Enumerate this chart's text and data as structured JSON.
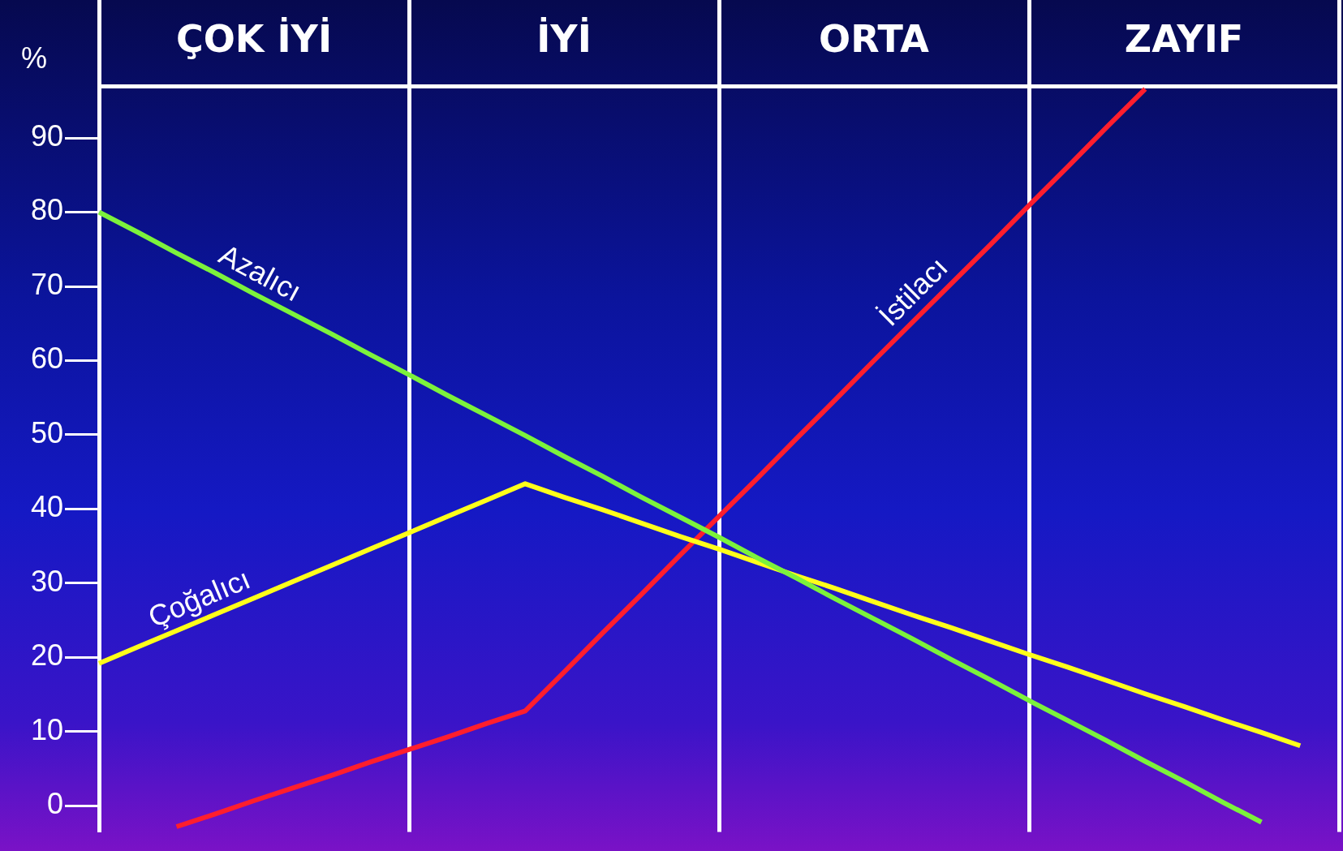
{
  "chart_data": {
    "type": "line",
    "ylabel": "%",
    "categories": [
      null,
      null,
      null,
      null,
      "ÇOK İYİ",
      null,
      null,
      null,
      null,
      null,
      null,
      null,
      "İYİ",
      null,
      null,
      null,
      null,
      null,
      null,
      null,
      "ORTA",
      null,
      null,
      null,
      null,
      null,
      null,
      null,
      "ZAYIF",
      null,
      null,
      null,
      null
    ],
    "ylim": [
      -3.5,
      97
    ],
    "yticks": [
      0,
      10,
      20,
      30,
      40,
      50,
      60,
      70,
      80,
      90
    ],
    "grid": "x",
    "legend": false,
    "marker": "none",
    "line_style": "solid",
    "series": [
      {
        "name": "Azalıcı",
        "color": "#7cf23c",
        "values": [
          80,
          77.3,
          74.5,
          71.8,
          69.0,
          66.3,
          63.6,
          60.8,
          58.1,
          55.3,
          52.6,
          49.9,
          47.1,
          44.4,
          41.6,
          38.9,
          36.2,
          33.4,
          30.7,
          27.9,
          25.2,
          22.5,
          19.7,
          17.0,
          14.2,
          11.5,
          8.8,
          6.0,
          3.3,
          0.5,
          -2.2,
          null,
          null
        ]
      },
      {
        "name": "Çoğalıcı",
        "color": "#ffff1a",
        "values": [
          19.2,
          21.4,
          23.6,
          25.8,
          28.0,
          30.2,
          32.4,
          34.6,
          36.8,
          39.0,
          41.2,
          43.4,
          41.6,
          39.9,
          38.1,
          36.3,
          34.6,
          32.8,
          31.0,
          29.3,
          27.5,
          25.7,
          24.0,
          22.2,
          20.4,
          18.7,
          16.9,
          15.1,
          13.4,
          11.6,
          9.9,
          8.1,
          null
        ]
      },
      {
        "name": "İstilacı",
        "color": "#ff1e2d",
        "values": [
          null,
          null,
          -2.8,
          -1.1,
          0.7,
          2.4,
          4.1,
          5.9,
          7.6,
          9.3,
          11.1,
          12.8,
          18.0,
          23.3,
          28.5,
          33.8,
          39.0,
          44.2,
          49.5,
          54.7,
          60.0,
          65.2,
          70.4,
          75.6,
          80.9,
          86.1,
          91.4,
          96.6,
          null,
          null,
          null,
          null,
          null
        ]
      }
    ]
  }
}
